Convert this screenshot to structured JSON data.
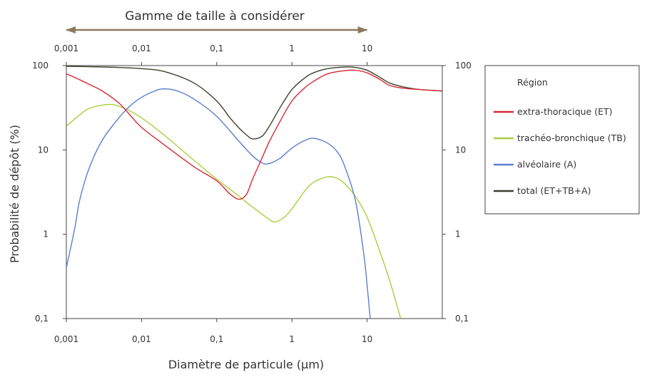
{
  "chart_data": {
    "type": "line",
    "title": "Gamme de taille à considérer",
    "xlabel": "Diamètre de particule (µm)",
    "ylabel": "Probabilité de dépôt (%)",
    "x_scale": "log",
    "y_scale": "log",
    "xlim": [
      0.001,
      100
    ],
    "ylim": [
      0.1,
      100
    ],
    "x_ticks": [
      "0,001",
      "0,01",
      "0,1",
      "1",
      "10"
    ],
    "y_ticks": [
      "100",
      "10",
      "1",
      "0,1"
    ],
    "range_arrow": [
      0.001,
      10
    ],
    "legend": {
      "title": "Région",
      "placement": "right"
    },
    "series": [
      {
        "name": "extra-thoracique (ET)",
        "color": "#d42a35",
        "points": [
          [
            0.001,
            80
          ],
          [
            0.0015,
            68
          ],
          [
            0.002,
            60
          ],
          [
            0.003,
            50
          ],
          [
            0.005,
            36
          ],
          [
            0.007,
            26
          ],
          [
            0.01,
            18.5
          ],
          [
            0.02,
            11.5
          ],
          [
            0.05,
            6.3
          ],
          [
            0.1,
            4.3
          ],
          [
            0.15,
            3.0
          ],
          [
            0.2,
            2.6
          ],
          [
            0.25,
            3.0
          ],
          [
            0.3,
            4.5
          ],
          [
            0.4,
            8
          ],
          [
            0.5,
            12.5
          ],
          [
            0.7,
            22
          ],
          [
            1,
            38
          ],
          [
            1.5,
            55
          ],
          [
            2,
            66
          ],
          [
            3,
            80
          ],
          [
            5,
            87
          ],
          [
            7,
            88
          ],
          [
            10,
            82
          ],
          [
            15,
            68
          ],
          [
            20,
            58
          ],
          [
            30,
            54
          ],
          [
            50,
            52
          ],
          [
            100,
            50
          ]
        ]
      },
      {
        "name": "trachéo-bronchique (TB)",
        "color": "#a8cf3c",
        "points": [
          [
            0.001,
            19
          ],
          [
            0.0015,
            26
          ],
          [
            0.002,
            31
          ],
          [
            0.003,
            34
          ],
          [
            0.004,
            34.5
          ],
          [
            0.005,
            33
          ],
          [
            0.007,
            29
          ],
          [
            0.01,
            24
          ],
          [
            0.02,
            15
          ],
          [
            0.05,
            7.5
          ],
          [
            0.1,
            4.5
          ],
          [
            0.2,
            2.8
          ],
          [
            0.3,
            2.1
          ],
          [
            0.5,
            1.5
          ],
          [
            0.6,
            1.4
          ],
          [
            0.8,
            1.6
          ],
          [
            1,
            2.0
          ],
          [
            1.5,
            3.3
          ],
          [
            2,
            4.2
          ],
          [
            3,
            4.8
          ],
          [
            4,
            4.6
          ],
          [
            5,
            4.0
          ],
          [
            7,
            2.8
          ],
          [
            10,
            1.6
          ],
          [
            15,
            0.6
          ],
          [
            20,
            0.28
          ],
          [
            28,
            0.1
          ]
        ]
      },
      {
        "name": "alvéolaire (A)",
        "color": "#5b7fcf",
        "points": [
          [
            0.001,
            0.4
          ],
          [
            0.0013,
            1.2
          ],
          [
            0.0015,
            2.5
          ],
          [
            0.002,
            6
          ],
          [
            0.003,
            13
          ],
          [
            0.005,
            24
          ],
          [
            0.007,
            33
          ],
          [
            0.01,
            42
          ],
          [
            0.015,
            50
          ],
          [
            0.02,
            53
          ],
          [
            0.03,
            50
          ],
          [
            0.05,
            40
          ],
          [
            0.1,
            25
          ],
          [
            0.2,
            12.5
          ],
          [
            0.3,
            8.5
          ],
          [
            0.4,
            7
          ],
          [
            0.5,
            6.9
          ],
          [
            0.7,
            8
          ],
          [
            1,
            10.5
          ],
          [
            1.5,
            13
          ],
          [
            2,
            13.7
          ],
          [
            3,
            12
          ],
          [
            4,
            9.5
          ],
          [
            5,
            6.5
          ],
          [
            7,
            2.5
          ],
          [
            9,
            0.6
          ],
          [
            10,
            0.25
          ],
          [
            11,
            0.1
          ]
        ]
      },
      {
        "name": "total (ET+TB+A)",
        "color": "#3c402c",
        "points": [
          [
            0.001,
            98
          ],
          [
            0.002,
            97
          ],
          [
            0.005,
            95
          ],
          [
            0.01,
            92
          ],
          [
            0.02,
            85
          ],
          [
            0.05,
            62
          ],
          [
            0.1,
            38
          ],
          [
            0.15,
            24
          ],
          [
            0.2,
            18
          ],
          [
            0.25,
            15
          ],
          [
            0.3,
            13.5
          ],
          [
            0.4,
            14.5
          ],
          [
            0.5,
            19
          ],
          [
            0.7,
            32
          ],
          [
            1,
            52
          ],
          [
            1.5,
            72
          ],
          [
            2,
            83
          ],
          [
            3,
            92
          ],
          [
            5,
            96
          ],
          [
            7,
            95
          ],
          [
            10,
            88
          ],
          [
            15,
            72
          ],
          [
            20,
            62
          ],
          [
            30,
            56
          ],
          [
            50,
            52
          ],
          [
            100,
            50
          ]
        ]
      }
    ]
  }
}
